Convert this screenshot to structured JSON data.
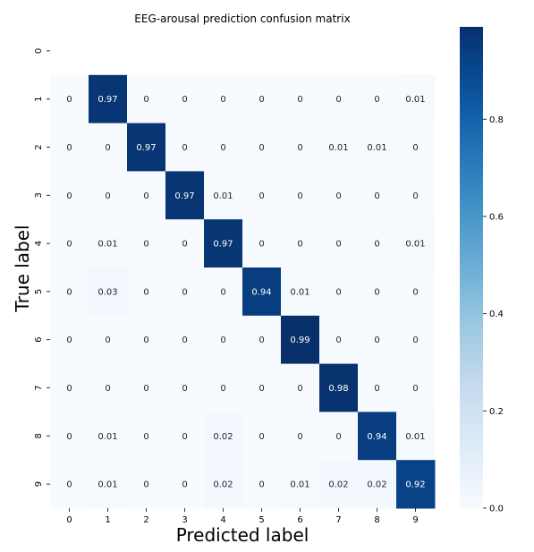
{
  "chart_data": {
    "type": "heatmap",
    "title": "EEG-arousal prediction confusion matrix",
    "xlabel": "Predicted label",
    "ylabel": "True label",
    "x_categories": [
      "0",
      "1",
      "2",
      "3",
      "4",
      "5",
      "6",
      "7",
      "8",
      "9"
    ],
    "y_categories": [
      "0",
      "1",
      "2",
      "3",
      "4",
      "5",
      "6",
      "7",
      "8",
      "9"
    ],
    "values": [
      [
        null,
        null,
        null,
        null,
        null,
        null,
        null,
        null,
        null,
        null
      ],
      [
        0,
        0.97,
        0,
        0,
        0,
        0,
        0,
        0,
        0,
        0.01
      ],
      [
        0,
        0,
        0.97,
        0,
        0,
        0,
        0,
        0.01,
        0.01,
        0
      ],
      [
        0,
        0,
        0,
        0.97,
        0.01,
        0,
        0,
        0,
        0,
        0
      ],
      [
        0,
        0.01,
        0,
        0,
        0.97,
        0,
        0,
        0,
        0,
        0.01
      ],
      [
        0,
        0.03,
        0,
        0,
        0,
        0.94,
        0.01,
        0,
        0,
        0
      ],
      [
        0,
        0,
        0,
        0,
        0,
        0,
        0.99,
        0,
        0,
        0
      ],
      [
        0,
        0,
        0,
        0,
        0,
        0,
        0,
        0.98,
        0,
        0
      ],
      [
        0,
        0.01,
        0,
        0,
        0.02,
        0,
        0,
        0,
        0.94,
        0.01
      ],
      [
        0,
        0.01,
        0,
        0,
        0.02,
        0,
        0.01,
        0.02,
        0.02,
        0.92
      ]
    ],
    "colorbar": {
      "min": 0,
      "max": 0.99,
      "ticks": [
        "0.0",
        "0.2",
        "0.4",
        "0.6",
        "0.8"
      ],
      "tick_values": [
        0,
        0.2,
        0.4,
        0.6,
        0.8
      ]
    },
    "colormap": "Blues"
  }
}
